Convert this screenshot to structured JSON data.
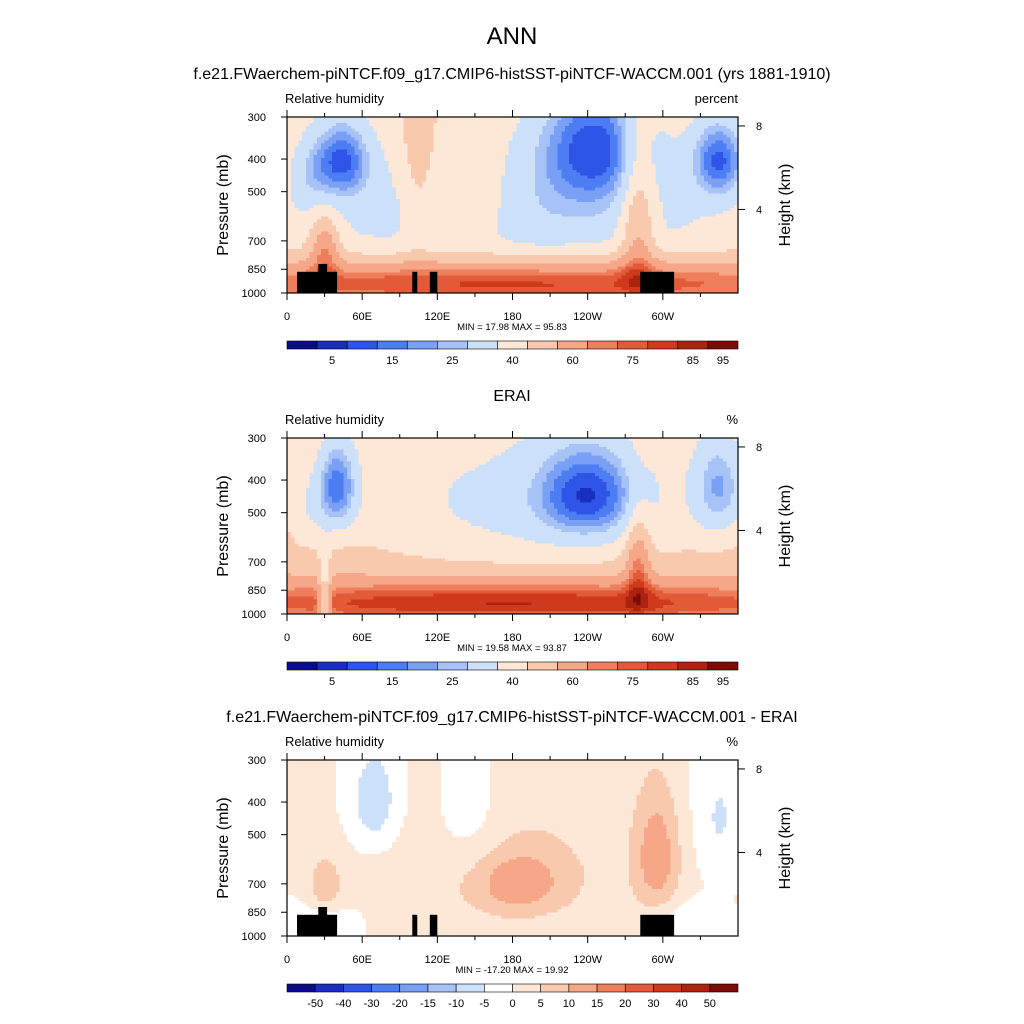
{
  "figure": {
    "title": "ANN",
    "colors": {
      "abs_scale": [
        "#0b0b8c",
        "#1a2fbf",
        "#2d55e8",
        "#4d7df2",
        "#7aa0f5",
        "#a6c2f7",
        "#cde0fa",
        "#fde8d8",
        "#f9c9ae",
        "#f5a787",
        "#ee7e5c",
        "#e35a38",
        "#cf3a1d",
        "#ad2312",
        "#7d0c06"
      ],
      "diff_scale": [
        "#0b0b8c",
        "#1a2fbf",
        "#2d55e8",
        "#4d7df2",
        "#7aa0f5",
        "#a6c2f7",
        "#cde0fa",
        "#ffffff",
        "#fde8d8",
        "#f9c9ae",
        "#f5a787",
        "#ee7e5c",
        "#e35a38",
        "#cf3a1d",
        "#ad2312",
        "#7d0c06"
      ]
    }
  },
  "chart_data": [
    {
      "type": "heatmap",
      "title": "f.e21.FWaerchem-piNTCF.f09_g17.CMIP6-histSST-piNTCF-WACCM.001 (yrs 1881-1910)",
      "left_label": "Relative humidity",
      "right_label": "percent",
      "ylabel": "Pressure (mb)",
      "y2label": "Height (km)",
      "x_ticks": [
        "0",
        "60E",
        "120E",
        "180",
        "120W",
        "60W"
      ],
      "x_tick_values": [
        0,
        60,
        120,
        180,
        240,
        300
      ],
      "xlim": [
        0,
        360
      ],
      "y_ticks": [
        "300",
        "400",
        "500",
        "700",
        "850",
        "1000"
      ],
      "y_tick_values": [
        300,
        400,
        500,
        700,
        850,
        1000
      ],
      "y2_ticks": [
        "8",
        "4"
      ],
      "y2_tick_values": [
        8,
        4
      ],
      "ylim": [
        1000,
        300
      ],
      "y_scale": "log",
      "stats": "MIN =  17.98  MAX =  95.83",
      "colorbar_labels": [
        "5",
        "15",
        "25",
        "40",
        "60",
        "75",
        "85",
        "95"
      ],
      "colorbar_label_bins": [
        1,
        3,
        5,
        7,
        9,
        11,
        13,
        14
      ],
      "palette": "abs",
      "show_terrain": true,
      "blobs": [
        {
          "x": 180,
          "p": 600,
          "v": -20,
          "rx": 200,
          "rp": 300
        },
        {
          "x": 245,
          "p": 360,
          "v": -32,
          "rx": 45,
          "rp": 160
        },
        {
          "x": 45,
          "p": 400,
          "v": -30,
          "rx": 22,
          "rp": 110
        },
        {
          "x": 345,
          "p": 400,
          "v": -32,
          "rx": 22,
          "rp": 110
        },
        {
          "x": 20,
          "p": 440,
          "v": -12,
          "rx": 18,
          "rp": 120
        },
        {
          "x": 150,
          "p": 550,
          "v": 12,
          "rx": 30,
          "rp": 200
        },
        {
          "x": 105,
          "p": 450,
          "v": 12,
          "rx": 15,
          "rp": 300
        },
        {
          "x": 280,
          "p": 600,
          "v": 22,
          "rx": 14,
          "rp": 350
        },
        {
          "x": 30,
          "p": 720,
          "v": 22,
          "rx": 12,
          "rp": 160
        },
        {
          "x": 180,
          "p": 930,
          "v": 34,
          "rx": 300,
          "rp": 150
        }
      ]
    },
    {
      "type": "heatmap",
      "title": "ERAI",
      "left_label": "Relative humidity",
      "right_label": "%",
      "ylabel": "Pressure (mb)",
      "y2label": "Height (km)",
      "x_ticks": [
        "0",
        "60E",
        "120E",
        "180",
        "120W",
        "60W"
      ],
      "x_tick_values": [
        0,
        60,
        120,
        180,
        240,
        300
      ],
      "xlim": [
        0,
        360
      ],
      "y_ticks": [
        "300",
        "400",
        "500",
        "700",
        "850",
        "1000"
      ],
      "y_tick_values": [
        300,
        400,
        500,
        700,
        850,
        1000
      ],
      "y2_ticks": [
        "8",
        "4"
      ],
      "y2_tick_values": [
        8,
        4
      ],
      "ylim": [
        1000,
        300
      ],
      "y_scale": "log",
      "stats": "MIN =  19.58  MAX =  93.87",
      "colorbar_labels": [
        "5",
        "15",
        "25",
        "40",
        "60",
        "75",
        "85",
        "95"
      ],
      "colorbar_label_bins": [
        1,
        3,
        5,
        7,
        9,
        11,
        13,
        14
      ],
      "palette": "abs",
      "show_terrain": false,
      "blobs": [
        {
          "x": 190,
          "p": 520,
          "v": -22,
          "rx": 160,
          "rp": 280
        },
        {
          "x": 240,
          "p": 440,
          "v": -30,
          "rx": 40,
          "rp": 140
        },
        {
          "x": 40,
          "p": 420,
          "v": -32,
          "rx": 16,
          "rp": 130
        },
        {
          "x": 345,
          "p": 420,
          "v": -24,
          "rx": 22,
          "rp": 150
        },
        {
          "x": 15,
          "p": 500,
          "v": -8,
          "rx": 14,
          "rp": 140
        },
        {
          "x": 180,
          "p": 650,
          "v": 10,
          "rx": 260,
          "rp": 280
        },
        {
          "x": 280,
          "p": 700,
          "v": 20,
          "rx": 10,
          "rp": 250
        },
        {
          "x": 180,
          "p": 930,
          "v": 32,
          "rx": 300,
          "rp": 140
        },
        {
          "x": 30,
          "p": 930,
          "v": -22,
          "rx": 5,
          "rp": 250
        }
      ]
    },
    {
      "type": "heatmap",
      "title": "f.e21.FWaerchem-piNTCF.f09_g17.CMIP6-histSST-piNTCF-WACCM.001 - ERAI",
      "left_label": "Relative humidity",
      "right_label": "%",
      "ylabel": "Pressure (mb)",
      "y2label": "Height (km)",
      "x_ticks": [
        "0",
        "60E",
        "120E",
        "180",
        "120W",
        "60W"
      ],
      "x_tick_values": [
        0,
        60,
        120,
        180,
        240,
        300
      ],
      "xlim": [
        0,
        360
      ],
      "y_ticks": [
        "300",
        "400",
        "500",
        "700",
        "850",
        "1000"
      ],
      "y_tick_values": [
        300,
        400,
        500,
        700,
        850,
        1000
      ],
      "y2_ticks": [
        "8",
        "4"
      ],
      "y2_tick_values": [
        8,
        4
      ],
      "ylim": [
        1000,
        300
      ],
      "y_scale": "log",
      "stats": "MIN = -17.20  MAX =  19.92",
      "colorbar_labels": [
        "-50",
        "-40",
        "-30",
        "-20",
        "-15",
        "-10",
        "-5",
        "0",
        "5",
        "10",
        "15",
        "20",
        "30",
        "40",
        "50"
      ],
      "colorbar_label_bins": [
        1,
        2,
        3,
        4,
        5,
        6,
        7,
        8,
        9,
        10,
        11,
        12,
        13,
        14,
        15
      ],
      "palette": "diff",
      "show_terrain": true,
      "blobs": [
        {
          "x": 70,
          "p": 400,
          "v": -10,
          "rx": 20,
          "rp": 140
        },
        {
          "x": 145,
          "p": 450,
          "v": -5,
          "rx": 30,
          "rp": 200
        },
        {
          "x": 345,
          "p": 450,
          "v": -6,
          "rx": 20,
          "rp": 200
        },
        {
          "x": 25,
          "p": 900,
          "v": -5,
          "rx": 30,
          "rp": 120
        },
        {
          "x": 320,
          "p": 900,
          "v": -5,
          "rx": 25,
          "rp": 120
        },
        {
          "x": 295,
          "p": 580,
          "v": 12,
          "rx": 18,
          "rp": 250
        },
        {
          "x": 180,
          "p": 620,
          "v": 5,
          "rx": 120,
          "rp": 350
        },
        {
          "x": 185,
          "p": 700,
          "v": 10,
          "rx": 35,
          "rp": 150
        },
        {
          "x": 30,
          "p": 720,
          "v": 8,
          "rx": 14,
          "rp": 150
        }
      ]
    }
  ]
}
